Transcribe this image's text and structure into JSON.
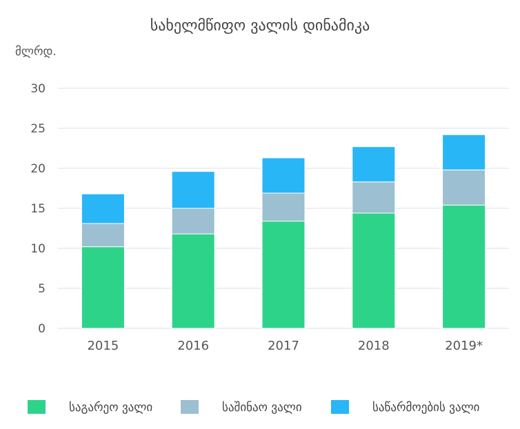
{
  "chart_data": {
    "type": "bar",
    "stacked": true,
    "title": "სახელმწიფო ვალის დინამიკა",
    "ylabel": "მლრდ.",
    "xlabel": "",
    "categories": [
      "2015",
      "2016",
      "2017",
      "2018",
      "2019*"
    ],
    "ylim": [
      0,
      30
    ],
    "yticks": [
      0,
      5,
      10,
      15,
      20,
      25,
      30
    ],
    "grid": true,
    "legend_position": "bottom",
    "series": [
      {
        "name": "საგარეო ვალი",
        "color": "#2ed38a",
        "values": [
          10.2,
          11.8,
          13.4,
          14.4,
          15.4
        ]
      },
      {
        "name": "საშინაო ვალი",
        "color": "#9cbfd1",
        "values": [
          2.9,
          3.2,
          3.5,
          3.9,
          4.4
        ]
      },
      {
        "name": "საწარმოების ვალი",
        "color": "#29b6f6",
        "values": [
          3.7,
          4.6,
          4.4,
          4.4,
          4.4
        ]
      }
    ]
  }
}
